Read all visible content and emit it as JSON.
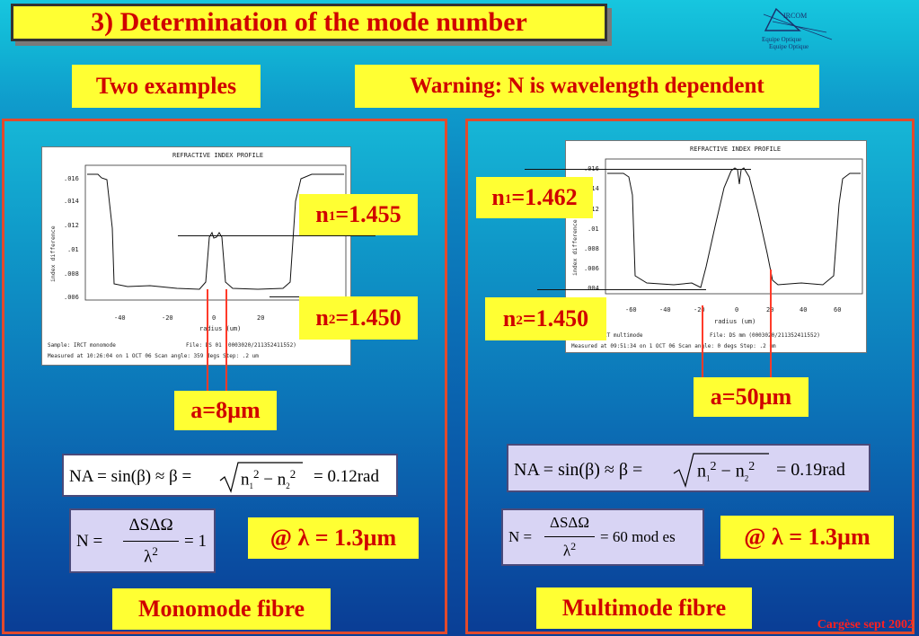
{
  "title": "3) Determination of the mode number",
  "logo": {
    "name": "IRCOM",
    "line1": "Equipe Optique",
    "line2": "Equipe Optique"
  },
  "labels": {
    "two_examples": "Two examples",
    "warning": "Warning: N is wavelength dependent"
  },
  "left": {
    "plot": {
      "title": "REFRACTIVE INDEX PROFILE",
      "ylabel": "index difference",
      "xlabel": "radius (um)",
      "yticks": [
        ".016",
        ".014",
        ".012",
        ".01",
        ".008",
        ".006"
      ],
      "xticks": [
        "-40",
        "-20",
        "0",
        "20"
      ],
      "info1": "Sample: IRCT monomode",
      "info1b": "File: DS 01 (0003020/211352411552)",
      "info2": "Measured at 10:26:04 on   1 OCT 06  Scan angle:  359  degs  Step: .2 um"
    },
    "n1": {
      "sym": "n",
      "sub": "1",
      "val": "=1.455"
    },
    "n2": {
      "sym": "n",
      "sub": "2",
      "val": "=1.450"
    },
    "a": "a=8µm",
    "na": {
      "lhs": "NA = sin(β) ≈ β =",
      "n": "n",
      "s1": "1",
      "s2": "2",
      "sq": "2",
      "minus": "−",
      "result": "= 0.12rad"
    },
    "n_formula": {
      "lhs": "N =",
      "num": "ΔSΔΩ",
      "den": "λ",
      "den_sup": "2",
      "result": "= 1"
    },
    "lambda": "@ λ = 1.3µm",
    "fibre": "Monomode fibre"
  },
  "right": {
    "plot": {
      "title": "REFRACTIVE INDEX PROFILE",
      "ylabel": "index difference",
      "xlabel": "radius (um)",
      "yticks": [
        ".016",
        ".014",
        ".012",
        ".01",
        ".008",
        ".006",
        ".004"
      ],
      "xticks": [
        "-60",
        "-40",
        "-20",
        "0",
        "20",
        "40",
        "60"
      ],
      "info1": "Sample: IRCT multimode",
      "info1b": "File: DS mm (0003020/211352411552)",
      "info2": "Measured at 09:51:34 on  1 OCT 06  Scan angle:   0   degs  Step: .2 um"
    },
    "n1": {
      "sym": "n",
      "sub": "1",
      "val": "=1.462"
    },
    "n2": {
      "sym": "n",
      "sub": "2",
      "val": "=1.450"
    },
    "a": "a=50µm",
    "na": {
      "lhs": "NA = sin(β) ≈ β =",
      "n": "n",
      "s1": "1",
      "s2": "2",
      "sq": "2",
      "minus": "−",
      "result": "= 0.19rad"
    },
    "n_formula": {
      "lhs": "N =",
      "num": "ΔSΔΩ",
      "den": "λ",
      "den_sup": "2",
      "result": "= 60 mod es"
    },
    "lambda": "@ λ = 1.3µm",
    "fibre": "Multimode fibre"
  },
  "footer": "Cargèse sept 2002",
  "colors": {
    "yellow": "#ffff33",
    "red_text": "#d00000",
    "panel_border": "#e24a2c",
    "formula_bg": "#d8d4f4"
  }
}
